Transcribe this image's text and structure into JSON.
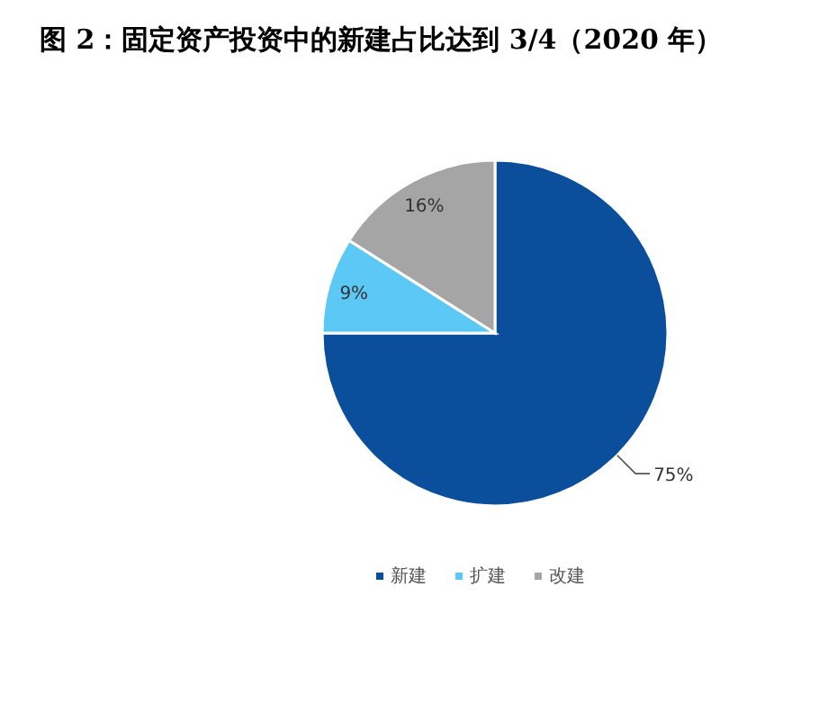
{
  "chart_data": {
    "type": "pie",
    "title": "图 2：固定资产投资中的新建占比达到 3/4（2020 年）",
    "categories": [
      "新建",
      "扩建",
      "改建"
    ],
    "values": [
      75,
      9,
      16
    ],
    "value_labels": [
      "75%",
      "9%",
      "16%"
    ],
    "colors": [
      "#0b4f9c",
      "#5bc8f5",
      "#a5a5a5"
    ],
    "legend": "bottom"
  }
}
